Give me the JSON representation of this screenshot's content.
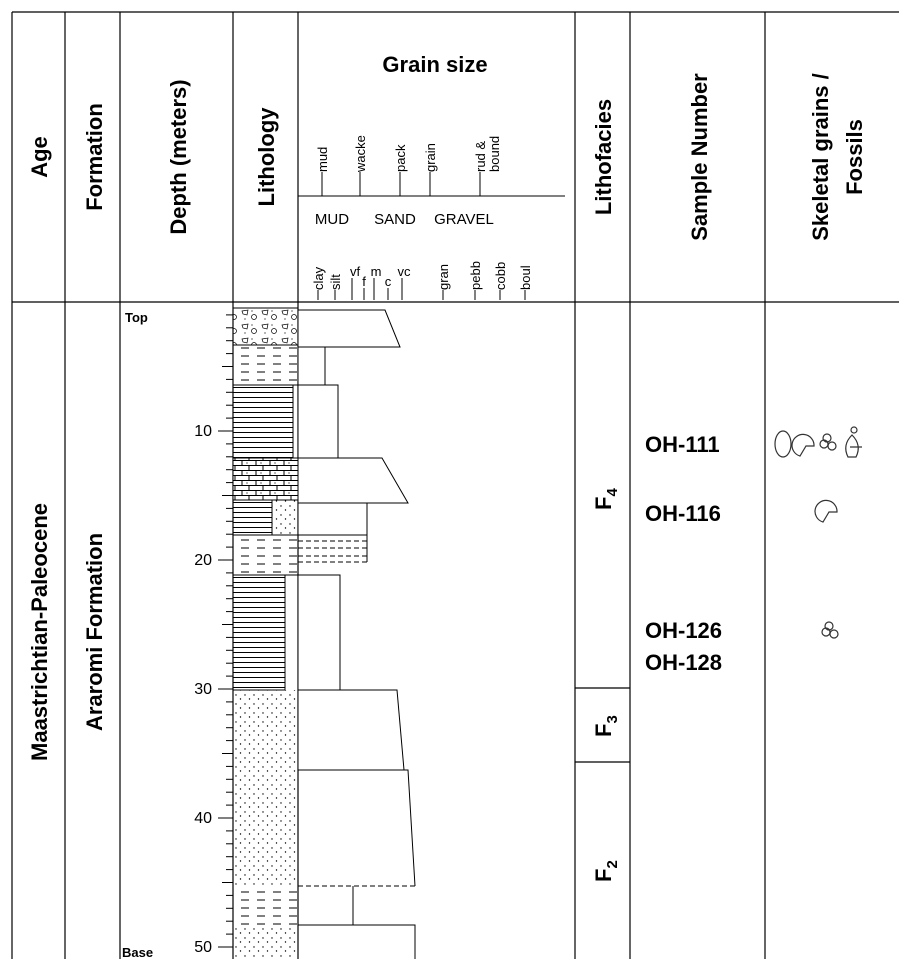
{
  "headers": {
    "age": "Age",
    "formation": "Formation",
    "depth": "Depth (meters)",
    "lithology": "Lithology",
    "grain_size": "Grain size",
    "lithofacies": "Lithofacies",
    "sample_number": "Sample Number",
    "fossils": [
      "Skeletal grains /",
      "Fossils"
    ]
  },
  "grain_scale": {
    "carbonate": [
      "mud",
      "wacke",
      "pack",
      "grain"
    ],
    "rud_bound": [
      "rud &",
      "bound"
    ],
    "classes": [
      "MUD",
      "SAND",
      "GRAVEL"
    ],
    "sizes": [
      "clay",
      "silt",
      "vf",
      "f",
      "m",
      "c",
      "vc",
      "gran",
      "pebb",
      "cobb",
      "boul"
    ]
  },
  "depth": {
    "top": "Top",
    "base": "Base",
    "ticks": [
      "10",
      "20",
      "30",
      "40",
      "50"
    ]
  },
  "age": "Maastrichtian-Paleocene",
  "formation": "Araromi Formation",
  "lithofacies": [
    {
      "label": "F",
      "sub": "4"
    },
    {
      "label": "F",
      "sub": "3"
    },
    {
      "label": "F",
      "sub": "2"
    }
  ],
  "samples": [
    "OH-111",
    "OH-116",
    "OH-126",
    "OH-128"
  ]
}
